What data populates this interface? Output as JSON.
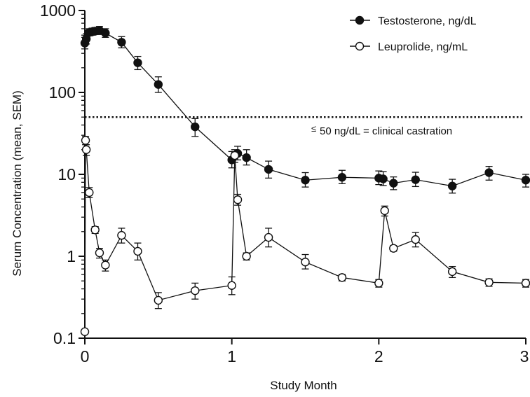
{
  "chart_data": {
    "type": "line",
    "xlabel": "Study Month",
    "ylabel": "Serum Concentration (mean, SEM)",
    "xlim": [
      0,
      3
    ],
    "ylim": [
      0.1,
      1000
    ],
    "y_scale": "log",
    "x_ticks": [
      0,
      1,
      2,
      3
    ],
    "y_ticks": [
      0.1,
      1,
      10,
      100,
      1000
    ],
    "y_tick_labels": [
      "0.1",
      "1",
      "10",
      "100",
      "1000"
    ],
    "grid": false,
    "legend_position": "top-right",
    "reference_line": {
      "y": 50,
      "style": "dotted",
      "label_symbol": "≤",
      "label": "50 ng/dL = clinical castration"
    },
    "series": [
      {
        "name": "Testosterone, ng/dL",
        "marker": "filled-circle",
        "points": [
          {
            "x": 0.0,
            "y": 400,
            "err_lo": 60,
            "err_hi": 70
          },
          {
            "x": 0.01,
            "y": 450,
            "err_lo": 60,
            "err_hi": 70
          },
          {
            "x": 0.03,
            "y": 540,
            "err_lo": 50,
            "err_hi": 60
          },
          {
            "x": 0.05,
            "y": 550,
            "err_lo": 50,
            "err_hi": 60
          },
          {
            "x": 0.07,
            "y": 560,
            "err_lo": 50,
            "err_hi": 60
          },
          {
            "x": 0.1,
            "y": 570,
            "err_lo": 60,
            "err_hi": 70
          },
          {
            "x": 0.14,
            "y": 530,
            "err_lo": 60,
            "err_hi": 70
          },
          {
            "x": 0.25,
            "y": 410,
            "err_lo": 60,
            "err_hi": 70
          },
          {
            "x": 0.36,
            "y": 230,
            "err_lo": 40,
            "err_hi": 45
          },
          {
            "x": 0.5,
            "y": 125,
            "err_lo": 25,
            "err_hi": 30
          },
          {
            "x": 0.75,
            "y": 38,
            "err_lo": 9,
            "err_hi": 10
          },
          {
            "x": 1.0,
            "y": 15,
            "err_lo": 3,
            "err_hi": 4
          },
          {
            "x": 1.04,
            "y": 18,
            "err_lo": 3,
            "err_hi": 4
          },
          {
            "x": 1.1,
            "y": 16,
            "err_lo": 3,
            "err_hi": 4
          },
          {
            "x": 1.25,
            "y": 11.5,
            "err_lo": 2.5,
            "err_hi": 3
          },
          {
            "x": 1.5,
            "y": 8.5,
            "err_lo": 1.5,
            "err_hi": 2
          },
          {
            "x": 1.75,
            "y": 9.2,
            "err_lo": 1.5,
            "err_hi": 2
          },
          {
            "x": 2.0,
            "y": 9.0,
            "err_lo": 1.5,
            "err_hi": 2
          },
          {
            "x": 2.03,
            "y": 8.8,
            "err_lo": 1.5,
            "err_hi": 2
          },
          {
            "x": 2.1,
            "y": 7.8,
            "err_lo": 1.3,
            "err_hi": 1.5
          },
          {
            "x": 2.25,
            "y": 8.6,
            "err_lo": 1.5,
            "err_hi": 2
          },
          {
            "x": 2.5,
            "y": 7.2,
            "err_lo": 1.3,
            "err_hi": 1.5
          },
          {
            "x": 2.75,
            "y": 10.5,
            "err_lo": 2,
            "err_hi": 2
          },
          {
            "x": 3.0,
            "y": 8.5,
            "err_lo": 1.5,
            "err_hi": 1.5
          }
        ]
      },
      {
        "name": "Leuprolide, ng/mL",
        "marker": "open-circle",
        "points": [
          {
            "x": 0.0,
            "y": 0.12,
            "err_lo": 0,
            "err_hi": 0
          },
          {
            "x": 0.005,
            "y": 26,
            "err_lo": 3,
            "err_hi": 3
          },
          {
            "x": 0.01,
            "y": 20,
            "err_lo": 3,
            "err_hi": 3
          },
          {
            "x": 0.03,
            "y": 6.0,
            "err_lo": 0.8,
            "err_hi": 0.9
          },
          {
            "x": 0.07,
            "y": 2.1,
            "err_lo": 0.2,
            "err_hi": 0.2
          },
          {
            "x": 0.1,
            "y": 1.1,
            "err_lo": 0.15,
            "err_hi": 0.15
          },
          {
            "x": 0.14,
            "y": 0.78,
            "err_lo": 0.12,
            "err_hi": 0.12
          },
          {
            "x": 0.25,
            "y": 1.8,
            "err_lo": 0.35,
            "err_hi": 0.4
          },
          {
            "x": 0.36,
            "y": 1.15,
            "err_lo": 0.25,
            "err_hi": 0.3
          },
          {
            "x": 0.5,
            "y": 0.29,
            "err_lo": 0.06,
            "err_hi": 0.07
          },
          {
            "x": 0.75,
            "y": 0.38,
            "err_lo": 0.08,
            "err_hi": 0.09
          },
          {
            "x": 1.0,
            "y": 0.44,
            "err_lo": 0.1,
            "err_hi": 0.12
          },
          {
            "x": 1.02,
            "y": 17,
            "err_lo": 3,
            "err_hi": 3
          },
          {
            "x": 1.04,
            "y": 4.9,
            "err_lo": 0.7,
            "err_hi": 0.8
          },
          {
            "x": 1.1,
            "y": 1.0,
            "err_lo": 0.1,
            "err_hi": 0.1
          },
          {
            "x": 1.25,
            "y": 1.7,
            "err_lo": 0.4,
            "err_hi": 0.5
          },
          {
            "x": 1.5,
            "y": 0.85,
            "err_lo": 0.15,
            "err_hi": 0.2
          },
          {
            "x": 1.75,
            "y": 0.55,
            "err_lo": 0.05,
            "err_hi": 0.05
          },
          {
            "x": 2.0,
            "y": 0.47,
            "err_lo": 0.05,
            "err_hi": 0.05
          },
          {
            "x": 2.04,
            "y": 3.6,
            "err_lo": 0.5,
            "err_hi": 0.5
          },
          {
            "x": 2.1,
            "y": 1.25,
            "err_lo": 0.1,
            "err_hi": 0.1
          },
          {
            "x": 2.25,
            "y": 1.6,
            "err_lo": 0.3,
            "err_hi": 0.35
          },
          {
            "x": 2.5,
            "y": 0.65,
            "err_lo": 0.1,
            "err_hi": 0.1
          },
          {
            "x": 2.75,
            "y": 0.48,
            "err_lo": 0.05,
            "err_hi": 0.05
          },
          {
            "x": 3.0,
            "y": 0.47,
            "err_lo": 0.05,
            "err_hi": 0.05
          }
        ]
      }
    ]
  }
}
